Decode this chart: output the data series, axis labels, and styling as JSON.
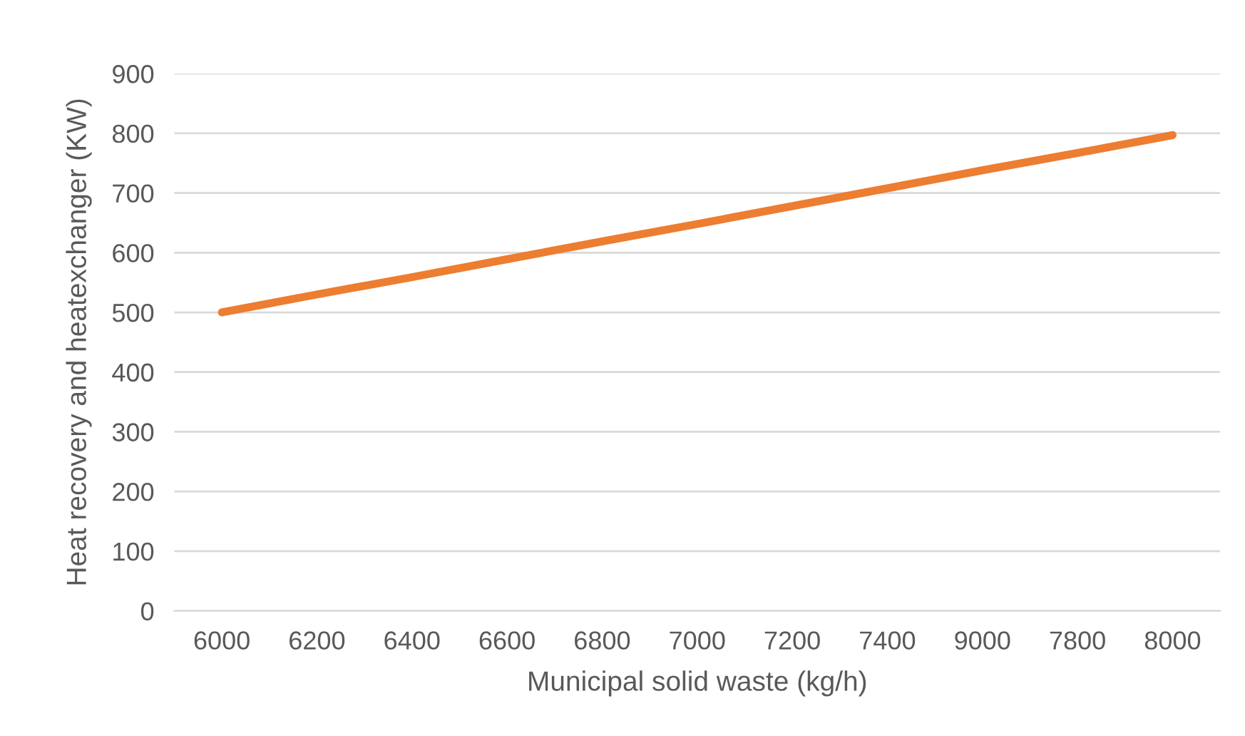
{
  "chart_data": {
    "type": "line",
    "xlabel": "Municipal solid waste (kg/h)",
    "ylabel": "Heat recovery and heatexchanger (KW)",
    "categories": [
      "6000",
      "6200",
      "6400",
      "6600",
      "6800",
      "7000",
      "7200",
      "7400",
      "9000",
      "7800",
      "8000"
    ],
    "series": [
      {
        "color": "#ed7d31",
        "values": [
          500,
          530,
          559,
          589,
          619,
          648,
          678,
          708,
          738,
          767,
          797
        ]
      }
    ],
    "ylim": [
      0,
      900
    ],
    "yticks": [
      0,
      100,
      200,
      300,
      400,
      500,
      600,
      700,
      800,
      900
    ],
    "grid": "y",
    "legend": false,
    "marker": "none",
    "line_style": "solid"
  }
}
